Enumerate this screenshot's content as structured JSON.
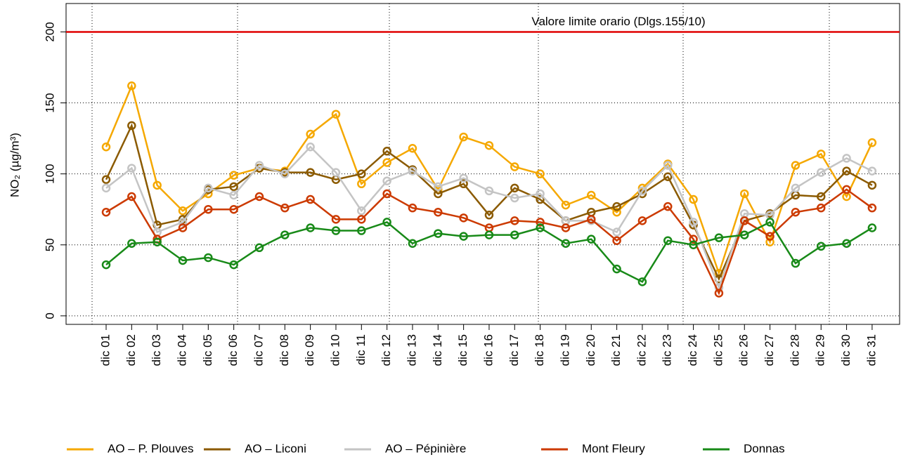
{
  "chart_data": {
    "type": "line",
    "y_label": "NO₂ (µg/m³)",
    "categories": [
      "dic 01",
      "dic 02",
      "dic 03",
      "dic 04",
      "dic 05",
      "dic 06",
      "dic 07",
      "dic 08",
      "dic 09",
      "dic 10",
      "dic 11",
      "dic 12",
      "dic 13",
      "dic 14",
      "dic 15",
      "dic 16",
      "dic 17",
      "dic 18",
      "dic 19",
      "dic 20",
      "dic 21",
      "dic 22",
      "dic 23",
      "dic 24",
      "dic 25",
      "dic 26",
      "dic 27",
      "dic 28",
      "dic 29",
      "dic 30",
      "dic 31"
    ],
    "series": [
      {
        "name": "AO – P. Plouves",
        "color": "#f5a800",
        "values": [
          119,
          162,
          92,
          74,
          86,
          99,
          104,
          102,
          128,
          142,
          93,
          108,
          118,
          89,
          126,
          120,
          105,
          100,
          78,
          85,
          73,
          90,
          107,
          82,
          30,
          86,
          52,
          106,
          114,
          84,
          122
        ]
      },
      {
        "name": "AO – Liconi",
        "color": "#8b5a00",
        "values": [
          96,
          134,
          64,
          68,
          89,
          91,
          104,
          101,
          101,
          96,
          100,
          116,
          103,
          86,
          93,
          71,
          90,
          82,
          67,
          73,
          77,
          86,
          98,
          64,
          26,
          67,
          72,
          85,
          84,
          102,
          92
        ]
      },
      {
        "name": "AO – Pépinière",
        "color": "#c4c4c4",
        "values": [
          90,
          104,
          59,
          66,
          90,
          85,
          106,
          100,
          119,
          101,
          74,
          95,
          102,
          91,
          97,
          88,
          83,
          86,
          67,
          67,
          59,
          88,
          106,
          66,
          20,
          72,
          71,
          90,
          101,
          111,
          102
        ]
      },
      {
        "name": "Mont Fleury",
        "color": "#cc3a00",
        "values": [
          73,
          84,
          54,
          62,
          75,
          75,
          84,
          76,
          82,
          68,
          68,
          86,
          76,
          73,
          69,
          62,
          67,
          66,
          62,
          68,
          53,
          67,
          77,
          54,
          16,
          67,
          56,
          73,
          76,
          89,
          76
        ]
      },
      {
        "name": "Donnas",
        "color": "#188a18",
        "values": [
          36,
          51,
          52,
          39,
          41,
          36,
          48,
          57,
          62,
          60,
          60,
          66,
          51,
          58,
          56,
          57,
          57,
          62,
          51,
          54,
          33,
          24,
          53,
          50,
          55,
          57,
          66,
          37,
          49,
          51,
          62
        ]
      }
    ],
    "reference_line": {
      "value": 200,
      "label": "Valore limite orario (Dlgs.155/10)",
      "color": "#e00000"
    },
    "ylim": [
      -6,
      220
    ],
    "yticks": [
      0,
      50,
      100,
      150,
      200
    ],
    "grid": true,
    "legend": "bottom"
  }
}
